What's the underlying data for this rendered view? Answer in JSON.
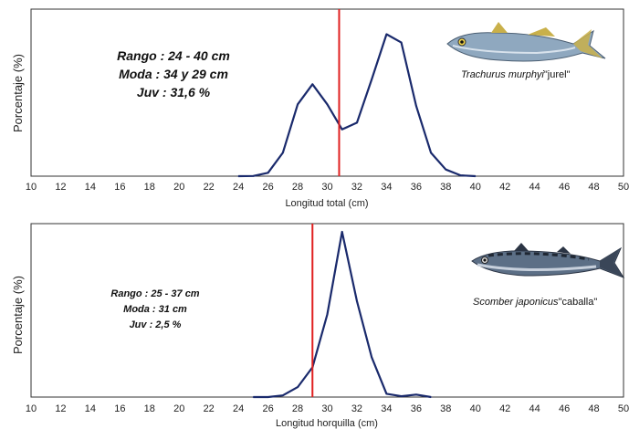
{
  "chart_data": [
    {
      "type": "line",
      "xlabel": "Longitud total (cm)",
      "ylabel": "Porcentaje (%)",
      "xlim": [
        10,
        50
      ],
      "x_ticks": [
        "10",
        "12",
        "14",
        "16",
        "18",
        "20",
        "22",
        "24",
        "26",
        "28",
        "30",
        "32",
        "34",
        "36",
        "38",
        "40",
        "42",
        "44",
        "46",
        "48",
        "50"
      ],
      "x": [
        24,
        25,
        26,
        27,
        28,
        29,
        30,
        31,
        32,
        33,
        34,
        35,
        36,
        37,
        38,
        39,
        40
      ],
      "values": [
        0,
        0.1,
        2,
        14,
        43,
        55,
        43,
        28,
        32,
        58,
        85,
        80,
        42,
        14,
        4,
        0.5,
        0
      ],
      "ylim": [
        0,
        100
      ],
      "marker_line_x": 30.8,
      "stats": [
        "Rango : 24 - 40 cm",
        "Moda : 34 y 29 cm",
        "Juv : 31,6 %"
      ],
      "species_label": {
        "name": "Trachurus murphyi",
        "common": "\"jurel\""
      },
      "colors": {
        "line": "#1a2a6c",
        "marker": "#e02020"
      }
    },
    {
      "type": "line",
      "xlabel": "Longitud horquilla (cm)",
      "ylabel": "Porcentaje (%)",
      "xlim": [
        10,
        50
      ],
      "x_ticks": [
        "10",
        "12",
        "14",
        "16",
        "18",
        "20",
        "22",
        "24",
        "26",
        "28",
        "30",
        "32",
        "34",
        "36",
        "38",
        "40",
        "42",
        "44",
        "46",
        "48",
        "50"
      ],
      "x": [
        25,
        26,
        27,
        28,
        29,
        30,
        31,
        32,
        33,
        34,
        35,
        36,
        37
      ],
      "values": [
        0,
        0,
        1,
        6,
        18,
        50,
        100,
        58,
        24,
        2,
        0.5,
        1.5,
        0
      ],
      "ylim": [
        0,
        105
      ],
      "marker_line_x": 29,
      "stats": [
        "Rango : 25 - 37 cm",
        "Moda : 31 cm",
        "Juv : 2,5  %"
      ],
      "species_label": {
        "name": "Scomber japonicus",
        "common": "\"caballa\""
      },
      "colors": {
        "line": "#1a2a6c",
        "marker": "#e02020"
      }
    }
  ]
}
